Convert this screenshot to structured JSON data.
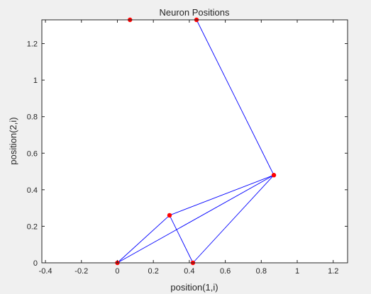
{
  "chart_data": {
    "type": "scatter",
    "title": "Neuron Positions",
    "xlabel": "position(1,i)",
    "ylabel": "position(2,i)",
    "xlim": [
      -0.42,
      1.28
    ],
    "ylim": [
      0,
      1.33
    ],
    "xticks": [
      "-0.4",
      "-0.2",
      "0",
      "0.2",
      "0.4",
      "0.6",
      "0.8",
      "1",
      "1.2"
    ],
    "xtick_values": [
      -0.4,
      -0.2,
      0,
      0.2,
      0.4,
      0.6,
      0.8,
      1,
      1.2
    ],
    "yticks": [
      "0",
      "0.2",
      "0.4",
      "0.6",
      "0.8",
      "1",
      "1.2"
    ],
    "ytick_values": [
      0,
      0.2,
      0.4,
      0.6,
      0.8,
      1,
      1.2
    ],
    "grid": false,
    "points": [
      {
        "x": 0.0,
        "y": 0.0
      },
      {
        "x": 0.42,
        "y": 0.0
      },
      {
        "x": 0.29,
        "y": 0.26
      },
      {
        "x": 0.87,
        "y": 0.48
      },
      {
        "x": 0.44,
        "y": 1.33
      },
      {
        "x": 0.07,
        "y": 1.33
      }
    ],
    "edges": [
      [
        0,
        1
      ],
      [
        0,
        2
      ],
      [
        0,
        3
      ],
      [
        1,
        2
      ],
      [
        1,
        3
      ],
      [
        2,
        3
      ],
      [
        3,
        4
      ],
      [
        4,
        5
      ]
    ],
    "marker_color": "#ff0000",
    "line_color": "#0000ff",
    "background": "#f0f0f0",
    "axes_background": "#ffffff"
  }
}
